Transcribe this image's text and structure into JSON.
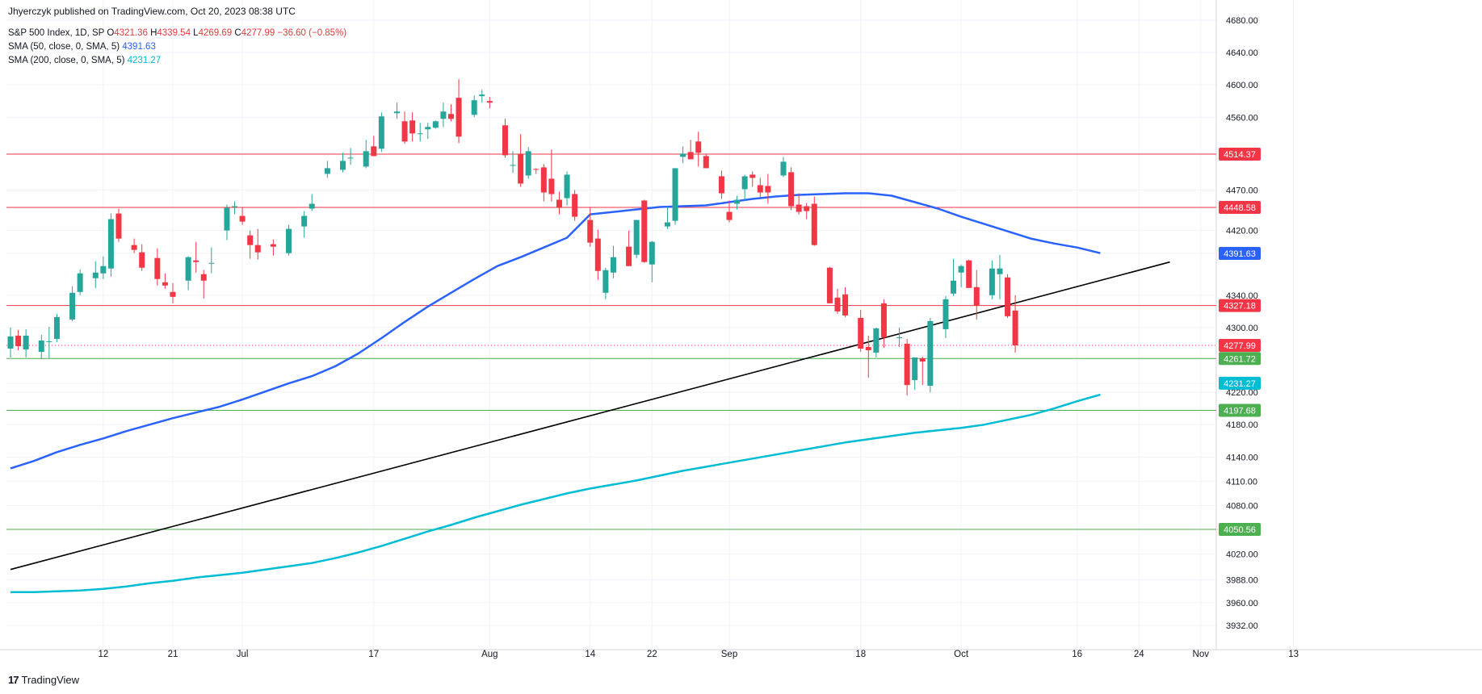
{
  "header": {
    "publisher": "Jhyerczyk published on TradingView.com, Oct 20, 2023 08:38 UTC",
    "symbol": "S&P 500 Index, 1D, SP",
    "ohlc": {
      "o_label": "O",
      "o": "4321.36",
      "h_label": "H",
      "h": "4339.54",
      "l_label": "L",
      "l": "4269.69",
      "c_label": "C",
      "c": "4277.99",
      "change": "−36.60 (−0.85%)"
    },
    "sma50": {
      "label": "SMA (50, close, 0, SMA, 5)",
      "value": "4391.63"
    },
    "sma200": {
      "label": "SMA (200, close, 0, SMA, 5)",
      "value": "4231.27"
    }
  },
  "footer": {
    "logo_mark": "17",
    "logo_text": "TradingView"
  },
  "colors": {
    "up": "#26a69a",
    "down": "#f23645",
    "sma50": "#2962ff",
    "sma200": "#00bcd4",
    "res": "#f23645",
    "sup": "#4caf50",
    "trend": "#000000",
    "grid": "#f0f3fa"
  },
  "chart_data": {
    "type": "candlestick",
    "y_ticks": [
      "4680.00",
      "4640.00",
      "4600.00",
      "4560.00",
      "4514.37",
      "4470.00",
      "4420.00",
      "4391.63",
      "4340.00",
      "4300.00",
      "4277.99",
      "4261.72",
      "4231.27",
      "4220.00",
      "4197.68",
      "4180.00",
      "4140.00",
      "4110.00",
      "4080.00",
      "4050.56",
      "4020.00",
      "3988.00",
      "3960.00",
      "3932.00"
    ],
    "y_tick_values": [
      4680,
      4640,
      4600,
      4560,
      4514.37,
      4470,
      4420,
      4391.63,
      4340,
      4300,
      4277.99,
      4261.72,
      4231.27,
      4220,
      4197.68,
      4180,
      4140,
      4110,
      4080,
      4050.56,
      4020,
      3988,
      3960,
      3932
    ],
    "x_ticks": [
      {
        "label": "12",
        "day": 12
      },
      {
        "label": "21",
        "day": 21
      },
      {
        "label": "Jul",
        "day": 30
      },
      {
        "label": "17",
        "day": 47
      },
      {
        "label": "Aug",
        "day": 62
      },
      {
        "label": "14",
        "day": 75
      },
      {
        "label": "22",
        "day": 83
      },
      {
        "label": "Sep",
        "day": 93
      },
      {
        "label": "18",
        "day": 110
      },
      {
        "label": "Oct",
        "day": 123
      },
      {
        "label": "16",
        "day": 138
      },
      {
        "label": "24",
        "day": 146
      },
      {
        "label": "Nov",
        "day": 154
      },
      {
        "label": "13",
        "day": 166
      }
    ],
    "horizontal_levels": [
      {
        "value": 4514.37,
        "label": "4514.37",
        "kind": "resistance"
      },
      {
        "value": 4448.58,
        "label": "4448.58",
        "kind": "resistance"
      },
      {
        "value": 4327.18,
        "label": "4327.18",
        "kind": "resistance"
      },
      {
        "value": 4261.72,
        "label": "4261.72",
        "kind": "support"
      },
      {
        "value": 4197.68,
        "label": "4197.68",
        "kind": "support"
      },
      {
        "value": 4050.56,
        "label": "4050.56",
        "kind": "support"
      }
    ],
    "last_price": {
      "value": 4277.99,
      "label": "4277.99"
    },
    "sma50_label": {
      "value": 4391.63,
      "label": "4391.63"
    },
    "sma200_label": {
      "value": 4231.27,
      "label": "4231.27"
    },
    "trendline": [
      {
        "day": 0,
        "value": 4001
      },
      {
        "day": 150,
        "value": 4381
      }
    ],
    "sma50": [
      [
        0,
        4126
      ],
      [
        3,
        4135
      ],
      [
        6,
        4146
      ],
      [
        9,
        4155
      ],
      [
        12,
        4163
      ],
      [
        15,
        4172
      ],
      [
        18,
        4180
      ],
      [
        21,
        4188
      ],
      [
        24,
        4195
      ],
      [
        27,
        4202
      ],
      [
        30,
        4211
      ],
      [
        33,
        4221
      ],
      [
        36,
        4231
      ],
      [
        39,
        4240
      ],
      [
        42,
        4252
      ],
      [
        45,
        4268
      ],
      [
        48,
        4287
      ],
      [
        51,
        4307
      ],
      [
        54,
        4326
      ],
      [
        57,
        4343
      ],
      [
        60,
        4360
      ],
      [
        63,
        4376
      ],
      [
        66,
        4387
      ],
      [
        69,
        4399
      ],
      [
        72,
        4411
      ],
      [
        75,
        4440
      ],
      [
        78,
        4443
      ],
      [
        81,
        4446
      ],
      [
        84,
        4449
      ],
      [
        87,
        4450
      ],
      [
        90,
        4451
      ],
      [
        93,
        4455
      ],
      [
        96,
        4459
      ],
      [
        99,
        4462
      ],
      [
        102,
        4464
      ],
      [
        105,
        4465
      ],
      [
        108,
        4466
      ],
      [
        111,
        4466
      ],
      [
        114,
        4463
      ],
      [
        117,
        4455
      ],
      [
        120,
        4447
      ],
      [
        123,
        4437
      ],
      [
        126,
        4428
      ],
      [
        129,
        4419
      ],
      [
        132,
        4410
      ],
      [
        135,
        4404
      ],
      [
        138,
        4399
      ],
      [
        141,
        4392
      ]
    ],
    "sma200": [
      [
        0,
        3973
      ],
      [
        3,
        3973
      ],
      [
        6,
        3974
      ],
      [
        9,
        3975
      ],
      [
        12,
        3977
      ],
      [
        15,
        3980
      ],
      [
        18,
        3984
      ],
      [
        21,
        3987
      ],
      [
        24,
        3991
      ],
      [
        27,
        3994
      ],
      [
        30,
        3997
      ],
      [
        33,
        4001
      ],
      [
        36,
        4005
      ],
      [
        39,
        4009
      ],
      [
        42,
        4015
      ],
      [
        45,
        4022
      ],
      [
        48,
        4030
      ],
      [
        51,
        4039
      ],
      [
        54,
        4048
      ],
      [
        57,
        4056
      ],
      [
        60,
        4065
      ],
      [
        63,
        4073
      ],
      [
        66,
        4081
      ],
      [
        69,
        4088
      ],
      [
        72,
        4095
      ],
      [
        75,
        4101
      ],
      [
        78,
        4106
      ],
      [
        81,
        4111
      ],
      [
        84,
        4117
      ],
      [
        87,
        4123
      ],
      [
        90,
        4128
      ],
      [
        93,
        4133
      ],
      [
        96,
        4138
      ],
      [
        99,
        4143
      ],
      [
        102,
        4148
      ],
      [
        105,
        4153
      ],
      [
        108,
        4158
      ],
      [
        111,
        4162
      ],
      [
        114,
        4166
      ],
      [
        117,
        4170
      ],
      [
        120,
        4173
      ],
      [
        123,
        4176
      ],
      [
        126,
        4180
      ],
      [
        129,
        4186
      ],
      [
        132,
        4192
      ],
      [
        135,
        4200
      ],
      [
        138,
        4209
      ],
      [
        141,
        4217
      ]
    ],
    "candles": [
      {
        "day": 0,
        "o": 4274,
        "h": 4300,
        "l": 4263,
        "c": 4289
      },
      {
        "day": 1,
        "o": 4290,
        "h": 4297,
        "l": 4272,
        "c": 4277
      },
      {
        "day": 2,
        "o": 4273,
        "h": 4298,
        "l": 4263,
        "c": 4290
      },
      {
        "day": 4,
        "o": 4270,
        "h": 4291,
        "l": 4261,
        "c": 4284
      },
      {
        "day": 5,
        "o": 4283,
        "h": 4301,
        "l": 4262,
        "c": 4283
      },
      {
        "day": 6,
        "o": 4286,
        "h": 4317,
        "l": 4282,
        "c": 4313
      },
      {
        "day": 8,
        "o": 4310,
        "h": 4351,
        "l": 4308,
        "c": 4343
      },
      {
        "day": 9,
        "o": 4344,
        "h": 4372,
        "l": 4340,
        "c": 4367
      },
      {
        "day": 11,
        "o": 4361,
        "h": 4382,
        "l": 4349,
        "c": 4368
      },
      {
        "day": 12,
        "o": 4367,
        "h": 4388,
        "l": 4360,
        "c": 4376
      },
      {
        "day": 13,
        "o": 4373,
        "h": 4441,
        "l": 4363,
        "c": 4434
      },
      {
        "day": 14,
        "o": 4441,
        "h": 4447,
        "l": 4406,
        "c": 4410
      },
      {
        "day": 16,
        "o": 4402,
        "h": 4410,
        "l": 4392,
        "c": 4396
      },
      {
        "day": 17,
        "o": 4393,
        "h": 4403,
        "l": 4370,
        "c": 4374
      },
      {
        "day": 19,
        "o": 4386,
        "h": 4398,
        "l": 4352,
        "c": 4360
      },
      {
        "day": 20,
        "o": 4356,
        "h": 4367,
        "l": 4348,
        "c": 4352
      },
      {
        "day": 21,
        "o": 4344,
        "h": 4355,
        "l": 4330,
        "c": 4338
      },
      {
        "day": 23,
        "o": 4358,
        "h": 4388,
        "l": 4346,
        "c": 4387
      },
      {
        "day": 24,
        "o": 4383,
        "h": 4406,
        "l": 4368,
        "c": 4381
      },
      {
        "day": 25,
        "o": 4366,
        "h": 4371,
        "l": 4336,
        "c": 4358
      },
      {
        "day": 26,
        "o": 4380,
        "h": 4399,
        "l": 4367,
        "c": 4380
      },
      {
        "day": 28,
        "o": 4420,
        "h": 4452,
        "l": 4408,
        "c": 4448
      },
      {
        "day": 29,
        "o": 4450,
        "h": 4456,
        "l": 4440,
        "c": 4450
      },
      {
        "day": 30,
        "o": 4438,
        "h": 4448,
        "l": 4427,
        "c": 4431
      },
      {
        "day": 31,
        "o": 4414,
        "h": 4420,
        "l": 4385,
        "c": 4402
      },
      {
        "day": 32,
        "o": 4402,
        "h": 4422,
        "l": 4384,
        "c": 4393
      },
      {
        "day": 34,
        "o": 4403,
        "h": 4409,
        "l": 4389,
        "c": 4400
      },
      {
        "day": 36,
        "o": 4392,
        "h": 4427,
        "l": 4389,
        "c": 4422
      },
      {
        "day": 38,
        "o": 4425,
        "h": 4444,
        "l": 4411,
        "c": 4438
      },
      {
        "day": 39,
        "o": 4447,
        "h": 4465,
        "l": 4444,
        "c": 4453
      },
      {
        "day": 41,
        "o": 4490,
        "h": 4506,
        "l": 4485,
        "c": 4497
      },
      {
        "day": 43,
        "o": 4495,
        "h": 4516,
        "l": 4492,
        "c": 4506
      },
      {
        "day": 44,
        "o": 4510,
        "h": 4522,
        "l": 4501,
        "c": 4510
      },
      {
        "day": 46,
        "o": 4499,
        "h": 4532,
        "l": 4497,
        "c": 4518
      },
      {
        "day": 47,
        "o": 4524,
        "h": 4537,
        "l": 4512,
        "c": 4512
      },
      {
        "day": 48,
        "o": 4521,
        "h": 4566,
        "l": 4517,
        "c": 4561
      },
      {
        "day": 50,
        "o": 4565,
        "h": 4578,
        "l": 4558,
        "c": 4567
      },
      {
        "day": 51,
        "o": 4555,
        "h": 4567,
        "l": 4527,
        "c": 4530
      },
      {
        "day": 52,
        "o": 4556,
        "h": 4566,
        "l": 4530,
        "c": 4540
      },
      {
        "day": 53,
        "o": 4540,
        "h": 4553,
        "l": 4530,
        "c": 4540
      },
      {
        "day": 54,
        "o": 4545,
        "h": 4553,
        "l": 4533,
        "c": 4548
      },
      {
        "day": 55,
        "o": 4547,
        "h": 4556,
        "l": 4546,
        "c": 4555
      },
      {
        "day": 56,
        "o": 4558,
        "h": 4578,
        "l": 4548,
        "c": 4567
      },
      {
        "day": 57,
        "o": 4564,
        "h": 4576,
        "l": 4555,
        "c": 4558
      },
      {
        "day": 58,
        "o": 4584,
        "h": 4607,
        "l": 4528,
        "c": 4536
      },
      {
        "day": 60,
        "o": 4563,
        "h": 4587,
        "l": 4560,
        "c": 4581
      },
      {
        "day": 61,
        "o": 4586,
        "h": 4594,
        "l": 4578,
        "c": 4588
      },
      {
        "day": 62,
        "o": 4580,
        "h": 4585,
        "l": 4571,
        "c": 4578
      },
      {
        "day": 64,
        "o": 4550,
        "h": 4558,
        "l": 4510,
        "c": 4513
      },
      {
        "day": 65,
        "o": 4500,
        "h": 4518,
        "l": 4491,
        "c": 4501
      },
      {
        "day": 66,
        "o": 4514,
        "h": 4539,
        "l": 4474,
        "c": 4478
      },
      {
        "day": 67,
        "o": 4488,
        "h": 4523,
        "l": 4484,
        "c": 4518
      },
      {
        "day": 68,
        "o": 4496,
        "h": 4497,
        "l": 4490,
        "c": 4495
      },
      {
        "day": 69,
        "o": 4498,
        "h": 4502,
        "l": 4456,
        "c": 4467
      },
      {
        "day": 70,
        "o": 4484,
        "h": 4520,
        "l": 4456,
        "c": 4465
      },
      {
        "day": 71,
        "o": 4458,
        "h": 4468,
        "l": 4440,
        "c": 4448
      },
      {
        "day": 72,
        "o": 4460,
        "h": 4493,
        "l": 4451,
        "c": 4489
      },
      {
        "day": 73,
        "o": 4465,
        "h": 4470,
        "l": 4432,
        "c": 4437
      },
      {
        "day": 75,
        "o": 4433,
        "h": 4448,
        "l": 4400,
        "c": 4405
      },
      {
        "day": 76,
        "o": 4410,
        "h": 4421,
        "l": 4359,
        "c": 4370
      },
      {
        "day": 77,
        "o": 4343,
        "h": 4374,
        "l": 4335,
        "c": 4371
      },
      {
        "day": 78,
        "o": 4368,
        "h": 4401,
        "l": 4361,
        "c": 4387
      },
      {
        "day": 80,
        "o": 4400,
        "h": 4420,
        "l": 4376,
        "c": 4376
      },
      {
        "day": 81,
        "o": 4390,
        "h": 4433,
        "l": 4386,
        "c": 4433
      },
      {
        "day": 82,
        "o": 4457,
        "h": 4458,
        "l": 4380,
        "c": 4381
      },
      {
        "day": 83,
        "o": 4378,
        "h": 4407,
        "l": 4356,
        "c": 4406
      },
      {
        "day": 85,
        "o": 4425,
        "h": 4450,
        "l": 4422,
        "c": 4430
      },
      {
        "day": 86,
        "o": 4432,
        "h": 4497,
        "l": 4427,
        "c": 4497
      },
      {
        "day": 87,
        "o": 4511,
        "h": 4524,
        "l": 4503,
        "c": 4515
      },
      {
        "day": 88,
        "o": 4517,
        "h": 4532,
        "l": 4510,
        "c": 4508
      },
      {
        "day": 89,
        "o": 4530,
        "h": 4542,
        "l": 4499,
        "c": 4516
      },
      {
        "day": 90,
        "o": 4512,
        "h": 4515,
        "l": 4497,
        "c": 4497
      },
      {
        "day": 92,
        "o": 4487,
        "h": 4494,
        "l": 4459,
        "c": 4466
      },
      {
        "day": 93,
        "o": 4443,
        "h": 4457,
        "l": 4430,
        "c": 4433
      },
      {
        "day": 94,
        "o": 4453,
        "h": 4463,
        "l": 4446,
        "c": 4458
      },
      {
        "day": 95,
        "o": 4471,
        "h": 4489,
        "l": 4457,
        "c": 4487
      },
      {
        "day": 96,
        "o": 4489,
        "h": 4493,
        "l": 4474,
        "c": 4485
      },
      {
        "day": 97,
        "o": 4476,
        "h": 4485,
        "l": 4461,
        "c": 4467
      },
      {
        "day": 98,
        "o": 4475,
        "h": 4490,
        "l": 4453,
        "c": 4467
      },
      {
        "day": 100,
        "o": 4488,
        "h": 4511,
        "l": 4486,
        "c": 4505
      },
      {
        "day": 101,
        "o": 4492,
        "h": 4498,
        "l": 4445,
        "c": 4450
      },
      {
        "day": 102,
        "o": 4452,
        "h": 4466,
        "l": 4440,
        "c": 4443
      },
      {
        "day": 103,
        "o": 4450,
        "h": 4454,
        "l": 4434,
        "c": 4444
      },
      {
        "day": 104,
        "o": 4453,
        "h": 4462,
        "l": 4401,
        "c": 4402
      },
      {
        "day": 106,
        "o": 4374,
        "h": 4375,
        "l": 4330,
        "c": 4330
      },
      {
        "day": 107,
        "o": 4337,
        "h": 4348,
        "l": 4317,
        "c": 4320
      },
      {
        "day": 108,
        "o": 4341,
        "h": 4350,
        "l": 4313,
        "c": 4315
      },
      {
        "day": 110,
        "o": 4312,
        "h": 4322,
        "l": 4270,
        "c": 4274
      },
      {
        "day": 111,
        "o": 4276,
        "h": 4290,
        "l": 4238,
        "c": 4272
      },
      {
        "day": 112,
        "o": 4269,
        "h": 4300,
        "l": 4263,
        "c": 4299
      },
      {
        "day": 113,
        "o": 4330,
        "h": 4335,
        "l": 4275,
        "c": 4288
      },
      {
        "day": 115,
        "o": 4287,
        "h": 4300,
        "l": 4276,
        "c": 4288
      },
      {
        "day": 116,
        "o": 4280,
        "h": 4286,
        "l": 4216,
        "c": 4229
      },
      {
        "day": 117,
        "o": 4235,
        "h": 4262,
        "l": 4223,
        "c": 4263
      },
      {
        "day": 118,
        "o": 4262,
        "h": 4264,
        "l": 4229,
        "c": 4258
      },
      {
        "day": 119,
        "o": 4228,
        "h": 4312,
        "l": 4220,
        "c": 4308
      },
      {
        "day": 121,
        "o": 4298,
        "h": 4339,
        "l": 4287,
        "c": 4335
      },
      {
        "day": 122,
        "o": 4342,
        "h": 4385,
        "l": 4339,
        "c": 4358
      },
      {
        "day": 123,
        "o": 4368,
        "h": 4378,
        "l": 4350,
        "c": 4376
      },
      {
        "day": 124,
        "o": 4383,
        "h": 4384,
        "l": 4350,
        "c": 4349
      },
      {
        "day": 125,
        "o": 4350,
        "h": 4371,
        "l": 4310,
        "c": 4327
      },
      {
        "day": 127,
        "o": 4340,
        "h": 4383,
        "l": 4335,
        "c": 4373
      },
      {
        "day": 128,
        "o": 4366,
        "h": 4390,
        "l": 4335,
        "c": 4373
      },
      {
        "day": 129,
        "o": 4362,
        "h": 4366,
        "l": 4312,
        "c": 4314
      },
      {
        "day": 130,
        "o": 4321,
        "h": 4340,
        "l": 4269,
        "c": 4278
      }
    ]
  }
}
